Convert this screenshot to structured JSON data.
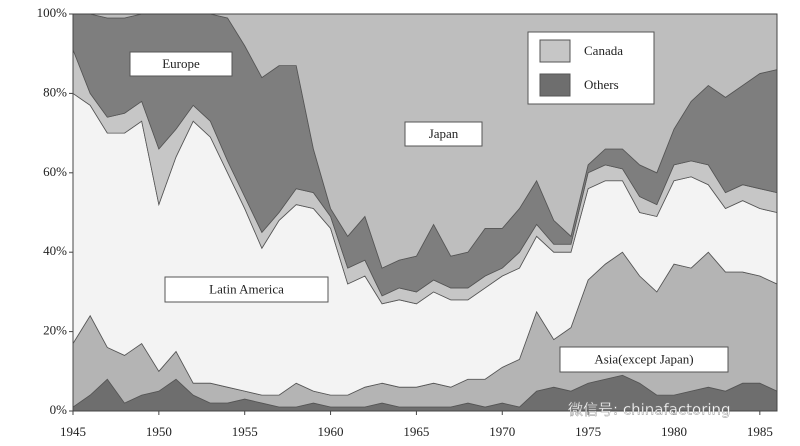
{
  "chart_data": {
    "type": "stacked_area",
    "x": [
      1945,
      1946,
      1947,
      1948,
      1949,
      1950,
      1951,
      1952,
      1953,
      1954,
      1955,
      1956,
      1957,
      1958,
      1959,
      1960,
      1961,
      1962,
      1963,
      1964,
      1965,
      1966,
      1967,
      1968,
      1969,
      1970,
      1971,
      1972,
      1973,
      1974,
      1975,
      1976,
      1977,
      1978,
      1979,
      1980,
      1981,
      1982,
      1983,
      1984,
      1985,
      1986
    ],
    "series": [
      {
        "name": "Others",
        "color": "#6e6e6e",
        "legend": true,
        "values": [
          1,
          4,
          8,
          2,
          4,
          5,
          8,
          4,
          2,
          2,
          3,
          2,
          1,
          1,
          2,
          1,
          1,
          1,
          2,
          1,
          1,
          1,
          1,
          2,
          1,
          2,
          1,
          5,
          6,
          5,
          7,
          8,
          9,
          7,
          4,
          4,
          5,
          6,
          5,
          7,
          7,
          5
        ]
      },
      {
        "name": "Asia(except Japan)",
        "color": "#b4b4b4",
        "legend": false,
        "values": [
          16,
          20,
          8,
          12,
          13,
          5,
          7,
          3,
          5,
          4,
          2,
          2,
          3,
          6,
          3,
          3,
          3,
          5,
          5,
          5,
          5,
          6,
          5,
          6,
          7,
          9,
          12,
          20,
          12,
          16,
          26,
          29,
          31,
          27,
          26,
          33,
          31,
          34,
          30,
          28,
          27,
          27
        ]
      },
      {
        "name": "Latin America",
        "color": "#f3f3f3",
        "legend": false,
        "values": [
          63,
          53,
          54,
          56,
          56,
          42,
          49,
          66,
          62,
          54,
          46,
          37,
          44,
          45,
          46,
          42,
          28,
          28,
          20,
          22,
          21,
          23,
          22,
          20,
          23,
          23,
          23,
          19,
          22,
          19,
          23,
          21,
          18,
          16,
          19,
          21,
          23,
          17,
          16,
          18,
          17,
          18
        ]
      },
      {
        "name": "Canada",
        "color": "#c6c6c6",
        "legend": true,
        "values": [
          11,
          3,
          4,
          5,
          5,
          14,
          7,
          4,
          4,
          3,
          3,
          4,
          2,
          4,
          4,
          3,
          4,
          4,
          2,
          3,
          3,
          3,
          3,
          3,
          3,
          2,
          4,
          3,
          2,
          2,
          4,
          4,
          3,
          4,
          3,
          4,
          4,
          5,
          4,
          4,
          5,
          5
        ]
      },
      {
        "name": "Europe",
        "color": "#7e7e7e",
        "legend": false,
        "values": [
          9,
          20,
          25,
          24,
          22,
          34,
          29,
          23,
          27,
          36,
          38,
          39,
          37,
          31,
          11,
          2,
          8,
          11,
          7,
          7,
          9,
          14,
          8,
          9,
          12,
          10,
          11,
          11,
          6,
          2,
          2,
          4,
          5,
          8,
          8,
          9,
          15,
          20,
          24,
          25,
          29,
          31
        ]
      },
      {
        "name": "Japan",
        "color": "#bebebe",
        "legend": false,
        "values": [
          0,
          0,
          1,
          1,
          0,
          0,
          0,
          0,
          0,
          1,
          8,
          16,
          13,
          13,
          34,
          49,
          56,
          51,
          64,
          62,
          61,
          53,
          61,
          60,
          54,
          54,
          49,
          42,
          52,
          56,
          38,
          34,
          34,
          38,
          40,
          29,
          22,
          18,
          21,
          18,
          15,
          14
        ]
      }
    ],
    "xlim": [
      1945,
      1986
    ],
    "xticks": [
      1945,
      1950,
      1955,
      1960,
      1965,
      1970,
      1975,
      1980,
      1985
    ],
    "ylim": [
      0,
      100
    ],
    "yticks": [
      {
        "value": 0,
        "label": "0%"
      },
      {
        "value": 20,
        "label": "20%"
      },
      {
        "value": 40,
        "label": "40%"
      },
      {
        "value": 60,
        "label": "60%"
      },
      {
        "value": 80,
        "label": "80%"
      },
      {
        "value": 100,
        "label": "100%"
      }
    ],
    "watermark": "微信号: chinafactoring"
  }
}
